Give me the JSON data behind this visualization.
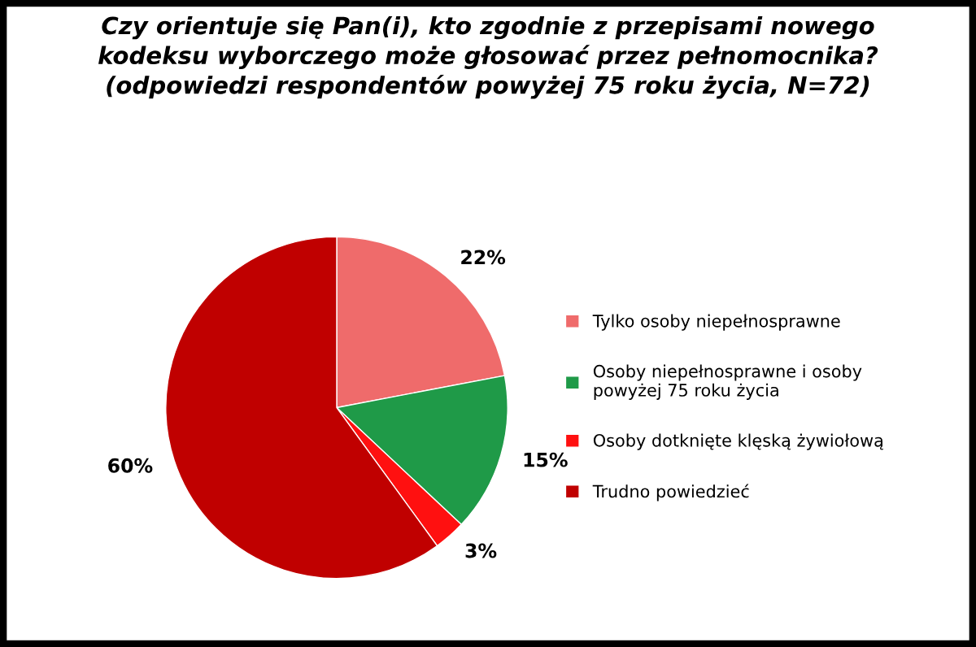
{
  "chart_data": {
    "type": "pie",
    "title": "Czy orientuje się Pan(i), kto zgodnie z przepisami nowego\nkodeksu wyborczego może głosować przez pełnomocnika?\n(odpowiedzi respondentów powyżej 75 roku życia, N=72)",
    "categories": [
      "Tylko osoby niepełnosprawne",
      "Osoby niepełnosprawne i osoby\npowyżej 75 roku życia",
      "Osoby dotknięte klęską żywiołową",
      "Trudno powiedzieć"
    ],
    "values": [
      22,
      15,
      3,
      60
    ],
    "colors": [
      "#ef6b6b",
      "#1f9a48",
      "#ff1010",
      "#c00000"
    ],
    "value_labels": [
      "22%",
      "15%",
      "3%",
      "60%"
    ],
    "legend": "right"
  }
}
